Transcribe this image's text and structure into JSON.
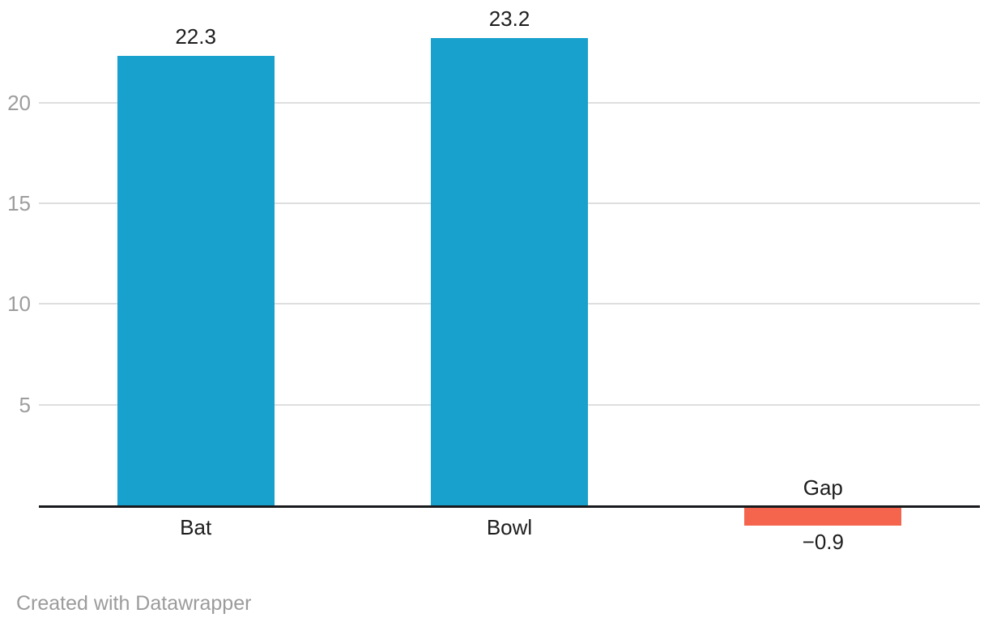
{
  "chart_data": {
    "type": "bar",
    "categories": [
      "Bat",
      "Bowl",
      "Gap"
    ],
    "values": [
      22.3,
      23.2,
      -0.9
    ],
    "value_labels": [
      "22.3",
      "23.2",
      "−0.9"
    ],
    "bar_colors": [
      "#18a1cd",
      "#18a1cd",
      "#f5654e"
    ],
    "positive_color": "#18a1cd",
    "negative_color": "#f5654e",
    "title": "",
    "xlabel": "",
    "ylabel": "",
    "yticks": [
      5,
      10,
      15,
      20
    ],
    "ylim": [
      -2,
      24
    ],
    "grid": true,
    "legend_position": "none"
  },
  "colors": {
    "background": "#ffffff",
    "grid": "#dedede",
    "tick_text": "#9d9d9d",
    "label_text": "#1d1d1d",
    "baseline": "#18191c",
    "credit_text": "#9b9b9b"
  },
  "footer": {
    "credit": "Created with Datawrapper"
  }
}
